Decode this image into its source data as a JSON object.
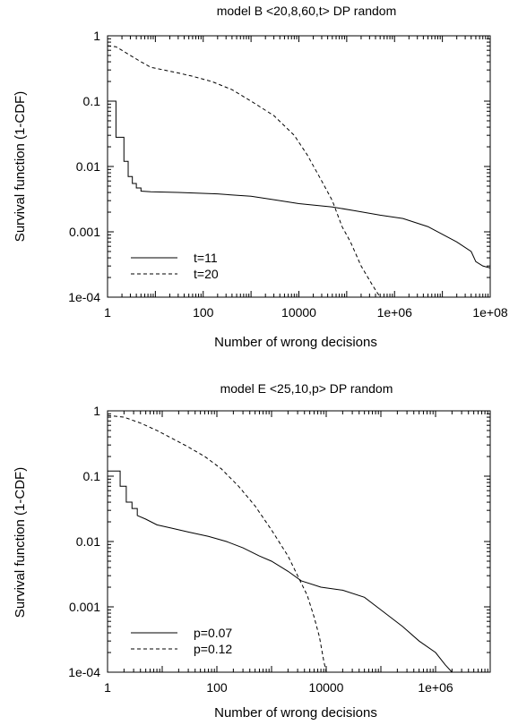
{
  "chart_data": [
    {
      "type": "line",
      "title": "model B <20,8,60,t> DP random",
      "xlabel": "Number of wrong decisions",
      "ylabel": "Survival function (1-CDF)",
      "xscale": "log",
      "yscale": "log",
      "xlim": [
        1,
        100000000
      ],
      "ylim": [
        0.0001,
        1
      ],
      "xticks": [
        "1",
        "100",
        "10000",
        "1e+06",
        "1e+08"
      ],
      "yticks": [
        "1",
        "0.1",
        "0.01",
        "0.001",
        "1e-04"
      ],
      "legend_position": "bottom-left",
      "series": [
        {
          "name": "t=11",
          "style": "solid",
          "step": true,
          "points": [
            [
              1,
              0.1
            ],
            [
              1.5,
              0.1
            ],
            [
              1.5,
              0.028
            ],
            [
              2.2,
              0.028
            ],
            [
              2.2,
              0.012
            ],
            [
              2.7,
              0.012
            ],
            [
              2.7,
              0.007
            ],
            [
              3.3,
              0.007
            ],
            [
              3.3,
              0.0055
            ],
            [
              4,
              0.0055
            ],
            [
              4,
              0.0047
            ],
            [
              5,
              0.0047
            ],
            [
              5,
              0.0042
            ],
            [
              8,
              0.0041
            ],
            [
              30,
              0.004
            ],
            [
              200,
              0.0038
            ],
            [
              1000,
              0.0035
            ],
            [
              3000,
              0.0031
            ],
            [
              10000,
              0.0027
            ],
            [
              50000,
              0.0024
            ],
            [
              150000,
              0.0021
            ],
            [
              500000,
              0.0018
            ],
            [
              1500000,
              0.0016
            ],
            [
              5000000,
              0.0012
            ],
            [
              20000000,
              0.0007
            ],
            [
              40000000,
              0.0005
            ],
            [
              50000000,
              0.00035
            ],
            [
              70000000,
              0.0003
            ],
            [
              100000000,
              0.00028
            ]
          ]
        },
        {
          "name": "t=20",
          "style": "dashed",
          "step": false,
          "points": [
            [
              1,
              0.7
            ],
            [
              1.5,
              0.68
            ],
            [
              2,
              0.6
            ],
            [
              3,
              0.5
            ],
            [
              5,
              0.4
            ],
            [
              8,
              0.33
            ],
            [
              15,
              0.3
            ],
            [
              30,
              0.27
            ],
            [
              60,
              0.24
            ],
            [
              150,
              0.2
            ],
            [
              400,
              0.15
            ],
            [
              1000,
              0.1
            ],
            [
              3000,
              0.06
            ],
            [
              8000,
              0.03
            ],
            [
              15000,
              0.015
            ],
            [
              30000,
              0.006
            ],
            [
              50000,
              0.003
            ],
            [
              80000,
              0.0012
            ],
            [
              120000,
              0.0007
            ],
            [
              200000,
              0.0003
            ],
            [
              350000,
              0.00015
            ],
            [
              500000,
              0.0001
            ]
          ]
        }
      ]
    },
    {
      "type": "line",
      "title": "model E <25,10,p> DP random",
      "xlabel": "Number of wrong decisions",
      "ylabel": "Survival function (1-CDF)",
      "xscale": "log",
      "yscale": "log",
      "xlim": [
        1,
        10000000
      ],
      "ylim": [
        0.0001,
        1
      ],
      "xticks": [
        "1",
        "100",
        "10000",
        "1e+06"
      ],
      "yticks": [
        "1",
        "0.1",
        "0.01",
        "0.001",
        "1e-04"
      ],
      "legend_position": "bottom-left",
      "series": [
        {
          "name": "p=0.07",
          "style": "solid",
          "step": true,
          "points": [
            [
              1,
              0.12
            ],
            [
              1.7,
              0.12
            ],
            [
              1.7,
              0.07
            ],
            [
              2.2,
              0.07
            ],
            [
              2.2,
              0.04
            ],
            [
              2.8,
              0.04
            ],
            [
              2.8,
              0.032
            ],
            [
              3.5,
              0.032
            ],
            [
              3.5,
              0.025
            ],
            [
              5,
              0.022
            ],
            [
              8,
              0.018
            ],
            [
              15,
              0.016
            ],
            [
              30,
              0.014
            ],
            [
              70,
              0.012
            ],
            [
              150,
              0.01
            ],
            [
              300,
              0.008
            ],
            [
              600,
              0.006
            ],
            [
              1000,
              0.005
            ],
            [
              2000,
              0.0035
            ],
            [
              3500,
              0.0025
            ],
            [
              8000,
              0.002
            ],
            [
              20000,
              0.0018
            ],
            [
              50000,
              0.0014
            ],
            [
              100000,
              0.0009
            ],
            [
              250000,
              0.0005
            ],
            [
              500000,
              0.0003
            ],
            [
              1000000,
              0.0002
            ],
            [
              1500000,
              0.00013
            ],
            [
              2000000,
              0.0001
            ]
          ]
        },
        {
          "name": "p=0.12",
          "style": "dashed",
          "step": false,
          "points": [
            [
              1,
              0.85
            ],
            [
              2,
              0.8
            ],
            [
              4,
              0.65
            ],
            [
              8,
              0.5
            ],
            [
              15,
              0.38
            ],
            [
              30,
              0.28
            ],
            [
              60,
              0.2
            ],
            [
              120,
              0.13
            ],
            [
              250,
              0.07
            ],
            [
              500,
              0.035
            ],
            [
              1000,
              0.015
            ],
            [
              2000,
              0.006
            ],
            [
              3000,
              0.003
            ],
            [
              4500,
              0.0015
            ],
            [
              6000,
              0.0007
            ],
            [
              7500,
              0.00035
            ],
            [
              9000,
              0.00015
            ],
            [
              10000,
              0.0001
            ]
          ]
        }
      ]
    }
  ]
}
